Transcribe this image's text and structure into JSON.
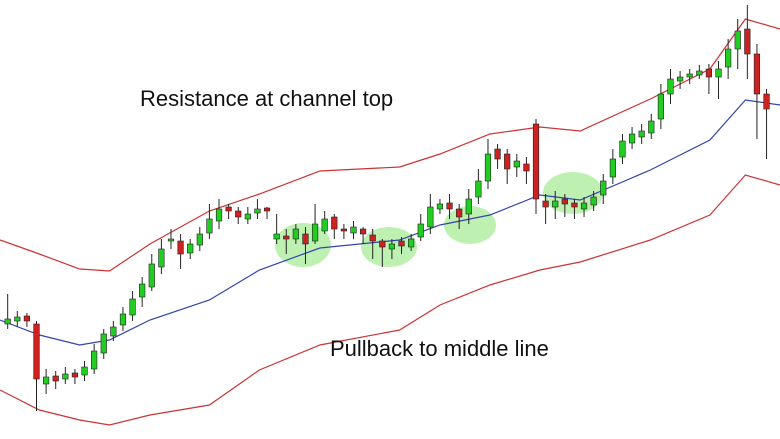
{
  "chart_data": {
    "type": "candlestick",
    "annotations": [
      "Resistance at channel top",
      "Pullback to middle line"
    ],
    "xlim": [
      -0.8,
      80.4
    ],
    "ylim": [
      0,
      439
    ],
    "up_color": "#22cc22",
    "down_color": "#cc2222",
    "open": [
      115,
      118,
      123,
      115,
      55,
      63,
      60,
      66,
      64,
      70,
      86,
      103,
      114,
      124,
      142,
      152,
      172,
      198,
      198,
      186,
      194,
      206,
      218,
      232,
      228,
      220,
      226,
      231,
      200,
      203,
      200,
      205,
      198,
      208,
      222,
      210,
      206,
      210,
      204,
      198,
      190,
      198,
      192,
      202,
      212,
      230,
      236,
      230,
      225,
      242,
      258,
      290,
      285,
      272,
      275,
      315,
      238,
      232,
      240,
      236,
      230,
      234,
      244,
      262,
      282,
      296,
      302,
      306,
      320,
      345,
      358,
      362,
      364,
      370,
      362,
      372,
      390,
      410,
      385,
      345
    ],
    "high": [
      145,
      128,
      126,
      118,
      70,
      68,
      72,
      70,
      78,
      95,
      110,
      118,
      132,
      148,
      162,
      185,
      200,
      210,
      205,
      200,
      212,
      235,
      240,
      235,
      232,
      232,
      240,
      232,
      225,
      210,
      215,
      212,
      235,
      228,
      225,
      215,
      218,
      212,
      210,
      200,
      200,
      202,
      205,
      225,
      245,
      240,
      245,
      235,
      250,
      270,
      300,
      295,
      290,
      285,
      282,
      320,
      245,
      248,
      245,
      240,
      242,
      248,
      265,
      290,
      305,
      312,
      315,
      325,
      355,
      370,
      368,
      370,
      374,
      375,
      378,
      400,
      420,
      434,
      395,
      350
    ],
    "low": [
      110,
      112,
      112,
      28,
      45,
      50,
      55,
      55,
      58,
      65,
      80,
      98,
      108,
      118,
      132,
      148,
      165,
      190,
      170,
      180,
      188,
      200,
      210,
      220,
      215,
      215,
      220,
      220,
      195,
      185,
      195,
      175,
      195,
      205,
      200,
      200,
      200,
      195,
      180,
      172,
      180,
      185,
      188,
      198,
      205,
      225,
      220,
      210,
      215,
      235,
      250,
      270,
      255,
      262,
      255,
      225,
      215,
      220,
      222,
      220,
      222,
      228,
      235,
      255,
      275,
      290,
      295,
      300,
      310,
      335,
      350,
      355,
      360,
      345,
      340,
      360,
      370,
      360,
      300,
      280
    ],
    "close": [
      120,
      122,
      118,
      60,
      62,
      58,
      65,
      62,
      72,
      88,
      105,
      112,
      125,
      140,
      155,
      175,
      190,
      200,
      185,
      195,
      205,
      220,
      230,
      228,
      222,
      225,
      230,
      228,
      205,
      200,
      210,
      195,
      215,
      220,
      210,
      208,
      212,
      205,
      198,
      192,
      195,
      193,
      200,
      215,
      232,
      235,
      230,
      222,
      240,
      258,
      285,
      280,
      270,
      278,
      268,
      240,
      232,
      238,
      235,
      232,
      236,
      242,
      258,
      280,
      298,
      305,
      308,
      318,
      345,
      360,
      362,
      365,
      368,
      362,
      370,
      390,
      408,
      385,
      345,
      330
    ],
    "lines": [
      {
        "color": "#cc3333",
        "x": [
          -0.8,
          3.3,
          7.5,
          10.6,
          14.8,
          21.0,
          26.2,
          32.5,
          40.8,
          45,
          50.2,
          55.4,
          59.6,
          66.9,
          73.1,
          76.8,
          80.4
        ],
        "values": [
          199,
          185,
          170,
          168,
          195,
          228,
          245,
          268,
          272,
          285,
          305,
          312,
          308,
          340,
          370,
          420,
          410
        ]
      },
      {
        "color": "#3344aa",
        "x": [
          -0.8,
          3.3,
          7.5,
          10.6,
          14.8,
          21.0,
          26.2,
          32.5,
          40.8,
          45,
          50.2,
          55.4,
          59.6,
          66.9,
          73.1,
          76.8,
          80.4
        ],
        "values": [
          119,
          104,
          94,
          99,
          119,
          139,
          169,
          191,
          199,
          214,
          224,
          244,
          239,
          269,
          299,
          339,
          334
        ]
      },
      {
        "color": "#cc3333",
        "x": [
          -0.8,
          3.3,
          7.5,
          10.6,
          14.8,
          21.0,
          26.2,
          32.5,
          40.8,
          45,
          50.2,
          55.4,
          59.6,
          66.9,
          73.1,
          76.8,
          80.4
        ],
        "values": [
          49,
          29,
          19,
          14,
          24,
          34,
          69,
          94,
          109,
          134,
          154,
          169,
          177,
          199,
          224,
          264,
          254
        ]
      }
    ]
  }
}
